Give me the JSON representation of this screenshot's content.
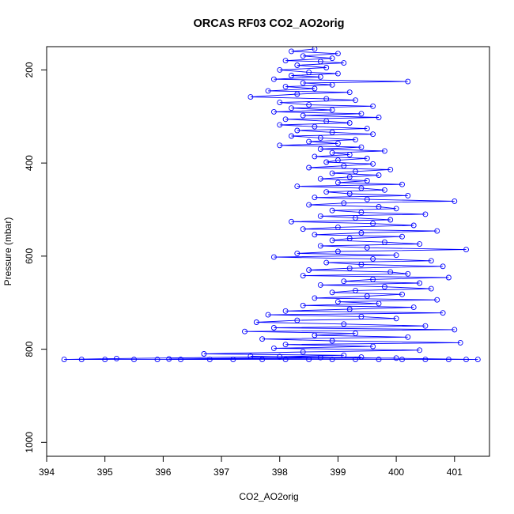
{
  "chart_data": {
    "type": "scatter",
    "title": "ORCAS RF03 CO2_AO2orig",
    "xlabel": "CO2_AO2orig",
    "ylabel": "Pressure (mbar)",
    "xlim": [
      394,
      401.6
    ],
    "ylim": [
      1030,
      150
    ],
    "y_reversed": true,
    "x_ticks": [
      394,
      395,
      396,
      397,
      398,
      399,
      400,
      401
    ],
    "y_ticks": [
      200,
      400,
      600,
      800,
      1000
    ],
    "grid": false,
    "legend": "none",
    "point_style": "open-circle-connected",
    "series": [
      {
        "color": "#0000ff",
        "points": [
          [
            398.6,
            155
          ],
          [
            398.2,
            160
          ],
          [
            399.0,
            165
          ],
          [
            398.4,
            170
          ],
          [
            398.9,
            175
          ],
          [
            398.1,
            180
          ],
          [
            398.7,
            182
          ],
          [
            399.1,
            185
          ],
          [
            398.3,
            190
          ],
          [
            398.8,
            195
          ],
          [
            398.0,
            200
          ],
          [
            398.5,
            205
          ],
          [
            399.0,
            208
          ],
          [
            398.2,
            212
          ],
          [
            398.7,
            215
          ],
          [
            397.9,
            220
          ],
          [
            400.2,
            225
          ],
          [
            398.4,
            228
          ],
          [
            398.9,
            232
          ],
          [
            398.1,
            236
          ],
          [
            398.6,
            240
          ],
          [
            397.8,
            245
          ],
          [
            399.2,
            248
          ],
          [
            398.3,
            252
          ],
          [
            397.5,
            258
          ],
          [
            398.8,
            262
          ],
          [
            399.3,
            265
          ],
          [
            398.0,
            270
          ],
          [
            398.5,
            275
          ],
          [
            399.6,
            278
          ],
          [
            398.2,
            282
          ],
          [
            398.9,
            286
          ],
          [
            397.9,
            290
          ],
          [
            399.4,
            294
          ],
          [
            398.4,
            298
          ],
          [
            399.7,
            302
          ],
          [
            398.1,
            306
          ],
          [
            398.8,
            310
          ],
          [
            399.2,
            314
          ],
          [
            398.0,
            318
          ],
          [
            398.6,
            322
          ],
          [
            399.5,
            326
          ],
          [
            398.3,
            330
          ],
          [
            398.9,
            334
          ],
          [
            399.6,
            338
          ],
          [
            398.2,
            342
          ],
          [
            398.7,
            346
          ],
          [
            399.3,
            350
          ],
          [
            398.5,
            354
          ],
          [
            399.0,
            358
          ],
          [
            398.0,
            362
          ],
          [
            399.4,
            366
          ],
          [
            398.7,
            370
          ],
          [
            399.8,
            374
          ],
          [
            398.9,
            378
          ],
          [
            399.2,
            382
          ],
          [
            398.6,
            386
          ],
          [
            399.5,
            390
          ],
          [
            399.0,
            394
          ],
          [
            398.8,
            398
          ],
          [
            399.6,
            402
          ],
          [
            399.1,
            406
          ],
          [
            398.5,
            410
          ],
          [
            399.9,
            414
          ],
          [
            399.3,
            418
          ],
          [
            398.9,
            422
          ],
          [
            399.7,
            426
          ],
          [
            399.2,
            430
          ],
          [
            398.7,
            434
          ],
          [
            399.5,
            438
          ],
          [
            399.0,
            442
          ],
          [
            400.1,
            446
          ],
          [
            398.3,
            450
          ],
          [
            399.4,
            454
          ],
          [
            399.8,
            458
          ],
          [
            398.8,
            462
          ],
          [
            399.2,
            466
          ],
          [
            400.2,
            470
          ],
          [
            398.6,
            474
          ],
          [
            399.5,
            478
          ],
          [
            401.0,
            482
          ],
          [
            399.1,
            486
          ],
          [
            398.5,
            490
          ],
          [
            399.7,
            494
          ],
          [
            400.0,
            498
          ],
          [
            398.9,
            502
          ],
          [
            399.4,
            506
          ],
          [
            400.5,
            510
          ],
          [
            398.7,
            514
          ],
          [
            399.3,
            518
          ],
          [
            399.9,
            522
          ],
          [
            398.2,
            526
          ],
          [
            399.6,
            530
          ],
          [
            400.3,
            534
          ],
          [
            399.0,
            538
          ],
          [
            398.4,
            542
          ],
          [
            400.7,
            546
          ],
          [
            399.4,
            550
          ],
          [
            398.6,
            554
          ],
          [
            400.1,
            558
          ],
          [
            399.2,
            562
          ],
          [
            398.9,
            566
          ],
          [
            399.8,
            570
          ],
          [
            400.4,
            574
          ],
          [
            398.7,
            578
          ],
          [
            399.5,
            582
          ],
          [
            401.2,
            586
          ],
          [
            399.0,
            590
          ],
          [
            398.3,
            594
          ],
          [
            400.0,
            598
          ],
          [
            397.9,
            602
          ],
          [
            399.6,
            606
          ],
          [
            400.6,
            610
          ],
          [
            398.8,
            614
          ],
          [
            399.4,
            618
          ],
          [
            400.8,
            622
          ],
          [
            399.2,
            626
          ],
          [
            398.5,
            630
          ],
          [
            399.9,
            634
          ],
          [
            400.2,
            638
          ],
          [
            398.4,
            642
          ],
          [
            400.9,
            646
          ],
          [
            399.6,
            650
          ],
          [
            399.1,
            654
          ],
          [
            400.4,
            658
          ],
          [
            398.7,
            662
          ],
          [
            399.8,
            666
          ],
          [
            400.6,
            670
          ],
          [
            399.3,
            674
          ],
          [
            398.9,
            678
          ],
          [
            400.1,
            682
          ],
          [
            399.5,
            686
          ],
          [
            398.6,
            690
          ],
          [
            400.7,
            694
          ],
          [
            399.0,
            698
          ],
          [
            399.7,
            702
          ],
          [
            398.4,
            706
          ],
          [
            400.3,
            710
          ],
          [
            399.2,
            714
          ],
          [
            398.1,
            718
          ],
          [
            400.8,
            722
          ],
          [
            397.8,
            726
          ],
          [
            399.4,
            730
          ],
          [
            400.0,
            734
          ],
          [
            398.3,
            738
          ],
          [
            397.6,
            742
          ],
          [
            399.1,
            746
          ],
          [
            400.5,
            750
          ],
          [
            397.9,
            754
          ],
          [
            401.0,
            758
          ],
          [
            397.4,
            762
          ],
          [
            399.3,
            766
          ],
          [
            398.6,
            770
          ],
          [
            400.2,
            774
          ],
          [
            397.7,
            778
          ],
          [
            398.9,
            782
          ],
          [
            401.1,
            786
          ],
          [
            398.1,
            790
          ],
          [
            399.6,
            794
          ],
          [
            397.9,
            798
          ],
          [
            400.4,
            802
          ],
          [
            398.4,
            806
          ],
          [
            396.7,
            810
          ],
          [
            399.1,
            813
          ],
          [
            398.0,
            816
          ],
          [
            395.2,
            820
          ],
          [
            394.3,
            822
          ],
          [
            394.6,
            822
          ],
          [
            395.0,
            822
          ],
          [
            395.5,
            822
          ],
          [
            395.9,
            822
          ],
          [
            396.3,
            822
          ],
          [
            396.8,
            822
          ],
          [
            397.2,
            822
          ],
          [
            397.7,
            822
          ],
          [
            398.1,
            822
          ],
          [
            398.5,
            822
          ],
          [
            398.9,
            822
          ],
          [
            399.3,
            822
          ],
          [
            399.7,
            822
          ],
          [
            400.1,
            822
          ],
          [
            400.5,
            822
          ],
          [
            400.9,
            822
          ],
          [
            401.2,
            822
          ],
          [
            401.4,
            822
          ],
          [
            397.5,
            815
          ],
          [
            398.7,
            818
          ],
          [
            400.0,
            819
          ],
          [
            396.1,
            821
          ],
          [
            399.4,
            817
          ]
        ]
      }
    ]
  }
}
